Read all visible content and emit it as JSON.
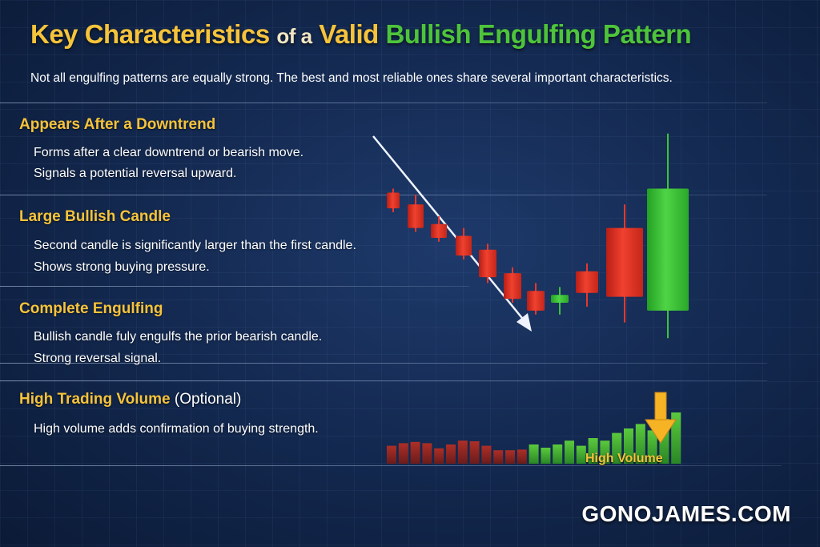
{
  "title": {
    "part1": "Key Characteristics",
    "part2": "of a",
    "part3": "Valid",
    "part4": "Bullish Engulfing Pattern"
  },
  "subtitle": "Not all engulfing patterns are equally strong. The best and most reliable ones share several important characteristics.",
  "sections": [
    {
      "heading": "Appears After a Downtrend",
      "lines": [
        "Forms after a clear downtrend or bearish move.",
        "Signals a potential reversal upward."
      ]
    },
    {
      "heading": "Large Bullish Candle",
      "lines": [
        "Second candle is significantly larger than the first candle.",
        "Shows strong buying pressure."
      ]
    },
    {
      "heading": "Complete Engulfing",
      "lines": [
        "Bullish candle fuly engulfs the prior bearish candle.",
        "Strong reversal signal."
      ]
    },
    {
      "heading": "High Trading Volume",
      "heading_note": "(Optional)",
      "lines": [
        "High volume adds confirmation of buying strength."
      ]
    }
  ],
  "volume_label": "High Volume",
  "brand": "GONOJAMES.COM",
  "colors": {
    "gold": "#f6c33b",
    "green": "#4ec43a",
    "bearish": "#e8372a",
    "bullish": "#3cc43a",
    "background": "#142a52"
  },
  "chart_data": {
    "type": "candlestick",
    "candles": [
      {
        "open": 100,
        "high": 101,
        "low": 95,
        "close": 96,
        "color": "bearish"
      },
      {
        "open": 97,
        "high": 99.5,
        "low": 90,
        "close": 91,
        "color": "bearish"
      },
      {
        "open": 92,
        "high": 94,
        "low": 87.5,
        "close": 88.5,
        "color": "bearish"
      },
      {
        "open": 89,
        "high": 91,
        "low": 83,
        "close": 84,
        "color": "bearish"
      },
      {
        "open": 85.5,
        "high": 87,
        "low": 77,
        "close": 78.5,
        "color": "bearish"
      },
      {
        "open": 79.5,
        "high": 81,
        "low": 72,
        "close": 73,
        "color": "bearish"
      },
      {
        "open": 75,
        "high": 77,
        "low": 69,
        "close": 70,
        "color": "bearish"
      },
      {
        "open": 72,
        "high": 76,
        "low": 69,
        "close": 74,
        "color": "bullish"
      },
      {
        "open": 80,
        "high": 82,
        "low": 71,
        "close": 74.5,
        "color": "bearish"
      },
      {
        "open": 91,
        "high": 97,
        "low": 67,
        "close": 73.5,
        "color": "bearish"
      },
      {
        "open": 70,
        "high": 115,
        "low": 63,
        "close": 101,
        "color": "bullish"
      }
    ],
    "volume": [
      {
        "value": 28,
        "color": "bearish"
      },
      {
        "value": 32,
        "color": "bearish"
      },
      {
        "value": 34,
        "color": "bearish"
      },
      {
        "value": 32,
        "color": "bearish"
      },
      {
        "value": 24,
        "color": "bearish"
      },
      {
        "value": 30,
        "color": "bearish"
      },
      {
        "value": 36,
        "color": "bearish"
      },
      {
        "value": 35,
        "color": "bearish"
      },
      {
        "value": 28,
        "color": "bearish"
      },
      {
        "value": 21,
        "color": "bearish"
      },
      {
        "value": 21,
        "color": "bearish"
      },
      {
        "value": 22,
        "color": "bearish"
      },
      {
        "value": 30,
        "color": "bullish"
      },
      {
        "value": 25,
        "color": "bullish"
      },
      {
        "value": 30,
        "color": "bullish"
      },
      {
        "value": 36,
        "color": "bullish"
      },
      {
        "value": 28,
        "color": "bullish"
      },
      {
        "value": 40,
        "color": "bullish"
      },
      {
        "value": 36,
        "color": "bullish"
      },
      {
        "value": 48,
        "color": "bullish"
      },
      {
        "value": 55,
        "color": "bullish"
      },
      {
        "value": 62,
        "color": "bullish"
      },
      {
        "value": 52,
        "color": "bullish"
      },
      {
        "value": 70,
        "color": "bullish"
      },
      {
        "value": 80,
        "color": "bullish"
      }
    ],
    "arrow": "downtrend",
    "volume_marker": "arrow-down-icon",
    "grid": true
  }
}
